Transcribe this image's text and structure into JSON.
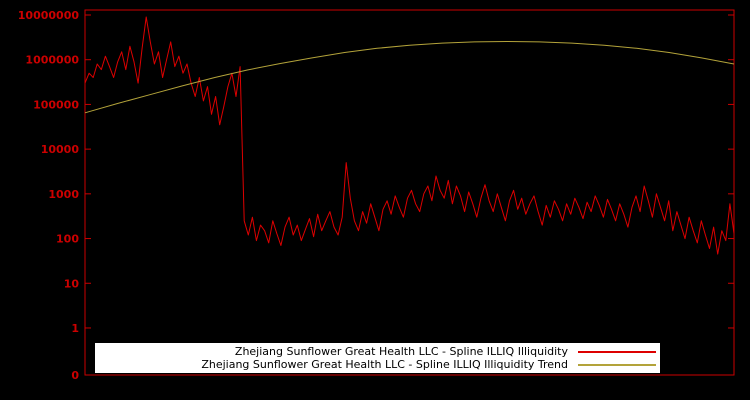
{
  "chart": {
    "background": "#000000",
    "axis_color": "#cc0000",
    "tick_font_size": 11
  },
  "legend": {
    "entries": [
      {
        "label": "Zhejiang Sunflower Great Health LLC - Spline ILLIQ Illiquidity",
        "color": "#dd0000"
      },
      {
        "label": "Zhejiang Sunflower Great Health LLC - Spline ILLIQ Illiquidity Trend",
        "color": "#b3a33a"
      }
    ]
  },
  "chart_data": {
    "type": "line",
    "title": "",
    "xlabel": "",
    "ylabel": "",
    "yscale": "log",
    "ylim": [
      1,
      10000000
    ],
    "grid": false,
    "legend_position": "bottom-center",
    "yticks": [
      {
        "label": "10000000",
        "value": 10000000
      },
      {
        "label": "1000000",
        "value": 1000000
      },
      {
        "label": "100000",
        "value": 100000
      },
      {
        "label": "10000",
        "value": 10000
      },
      {
        "label": "1000",
        "value": 1000
      },
      {
        "label": "100",
        "value": 100
      },
      {
        "label": "10",
        "value": 10
      },
      {
        "label": "1",
        "value": 1
      },
      {
        "label": "0",
        "value": null
      }
    ],
    "series": [
      {
        "name": "Zhejiang Sunflower Great Health LLC - Spline ILLIQ Illiquidity",
        "color": "#dd0000",
        "x_mode": "uniform",
        "values": [
          300000,
          500000,
          400000,
          800000,
          600000,
          1200000,
          700000,
          400000,
          900000,
          1500000,
          600000,
          2000000,
          900000,
          300000,
          1800000,
          9000000,
          2500000,
          800000,
          1500000,
          400000,
          1000000,
          2500000,
          700000,
          1200000,
          500000,
          800000,
          300000,
          150000,
          400000,
          120000,
          250000,
          60000,
          150000,
          35000,
          90000,
          250000,
          500000,
          150000,
          700000,
          250,
          120,
          300,
          90,
          200,
          150,
          80,
          250,
          130,
          70,
          180,
          300,
          120,
          200,
          90,
          160,
          280,
          110,
          350,
          150,
          250,
          400,
          180,
          120,
          300,
          5000,
          800,
          250,
          150,
          400,
          220,
          600,
          300,
          150,
          450,
          700,
          350,
          900,
          500,
          300,
          800,
          1200,
          600,
          400,
          1000,
          1500,
          700,
          2500,
          1200,
          800,
          2000,
          600,
          1500,
          900,
          400,
          1100,
          600,
          300,
          800,
          1600,
          700,
          400,
          1000,
          500,
          250,
          700,
          1200,
          450,
          800,
          350,
          600,
          900,
          400,
          200,
          550,
          300,
          700,
          450,
          250,
          600,
          350,
          800,
          500,
          280,
          650,
          400,
          900,
          550,
          300,
          750,
          450,
          250,
          600,
          350,
          180,
          500,
          900,
          400,
          1500,
          700,
          300,
          1000,
          500,
          250,
          700,
          150,
          400,
          200,
          100,
          300,
          150,
          80,
          250,
          120,
          60,
          180,
          45,
          150,
          90,
          600,
          130
        ]
      },
      {
        "name": "Zhejiang Sunflower Great Health LLC - Spline ILLIQ Illiquidity Trend",
        "color": "#b3a33a",
        "x_mode": "fractions",
        "x_frac": [
          0,
          0.05,
          0.1,
          0.15,
          0.2,
          0.25,
          0.3,
          0.35,
          0.4,
          0.45,
          0.5,
          0.55,
          0.6,
          0.65,
          0.7,
          0.75,
          0.8,
          0.85,
          0.9,
          0.95,
          1
        ],
        "values": [
          65000,
          105000,
          165000,
          260000,
          400000,
          590000,
          820000,
          1100000,
          1450000,
          1800000,
          2100000,
          2350000,
          2500000,
          2550000,
          2500000,
          2350000,
          2100000,
          1800000,
          1450000,
          1100000,
          800000
        ]
      }
    ]
  }
}
